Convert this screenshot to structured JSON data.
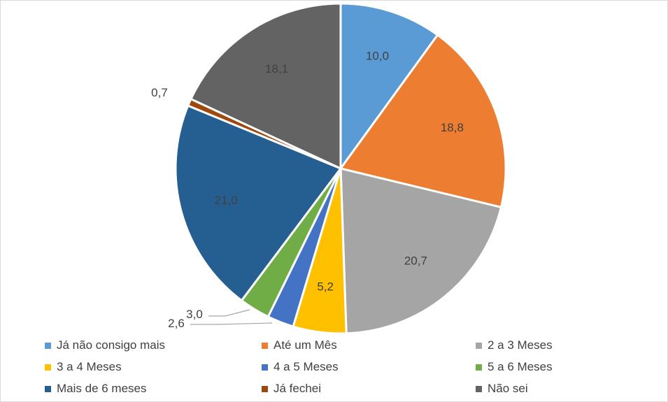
{
  "chart_data": {
    "type": "pie",
    "categories": [
      "Já não consigo mais",
      "Até um Mês",
      "2 a 3 Meses",
      "3 a 4 Meses",
      "4 a 5 Meses",
      "5 a 6 Meses",
      "Mais de 6 meses",
      "Já fechei",
      "Não sei"
    ],
    "values": [
      10.0,
      18.8,
      20.7,
      5.2,
      2.6,
      3.0,
      21.0,
      0.7,
      18.1
    ],
    "value_labels": [
      "10,0",
      "18,8",
      "20,7",
      "5,2",
      "2,6",
      "3,0",
      "21,0",
      "0,7",
      "18,1"
    ],
    "colors": [
      "#5B9BD5",
      "#ED7D31",
      "#A5A5A5",
      "#FFC000",
      "#4472C4",
      "#70AD47",
      "#255E91",
      "#9E480E",
      "#636363"
    ],
    "start_angle": "12 o'clock",
    "direction": "clockwise",
    "legend_position": "bottom"
  }
}
